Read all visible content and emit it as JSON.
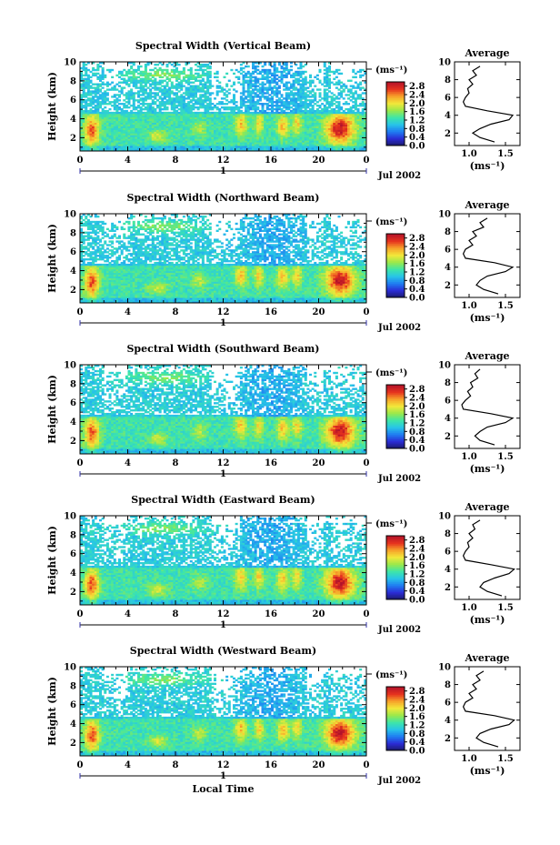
{
  "chart_data": [
    {
      "type": "heatmap",
      "title": "Spectral Width (Vertical Beam)",
      "ylabel": "Height (km)",
      "x_ticks": [
        "0",
        "4",
        "8",
        "12",
        "16",
        "20",
        "0"
      ],
      "y_ticks": [
        "2",
        "4",
        "6",
        "8",
        "10"
      ],
      "xlim": [
        0,
        24
      ],
      "ylim": [
        0.6,
        10
      ],
      "date_label": "Jul 2002",
      "day_label": "1",
      "colorbar": {
        "unit": "(ms⁻¹)",
        "ticks": [
          "0.0",
          "0.4",
          "0.8",
          "1.2",
          "1.6",
          "2.0",
          "2.4",
          "2.8"
        ],
        "range": [
          0,
          3.0
        ]
      },
      "profile": {
        "title": "Average",
        "x_ticks": [
          "1.0",
          "1.5"
        ],
        "xlabel": "(ms⁻¹)",
        "xlim": [
          0.8,
          1.7
        ],
        "ylim": [
          0.6,
          10
        ],
        "y_ticks": [
          "2",
          "4",
          "6",
          "8",
          "10"
        ],
        "heights": [
          1.0,
          1.5,
          2.0,
          2.5,
          3.0,
          3.5,
          4.0,
          4.5,
          5.0,
          5.5,
          6.0,
          6.5,
          7.0,
          7.5,
          8.0,
          8.5,
          9.0,
          9.5
        ],
        "values": [
          1.35,
          1.15,
          1.05,
          1.15,
          1.3,
          1.55,
          1.6,
          1.25,
          0.95,
          0.92,
          0.95,
          1.0,
          0.98,
          1.05,
          1.0,
          1.1,
          1.05,
          1.15
        ]
      }
    },
    {
      "type": "heatmap",
      "title": "Spectral Width (Northward Beam)",
      "ylabel": "Height (km)",
      "x_ticks": [
        "0",
        "4",
        "8",
        "12",
        "16",
        "20",
        "0"
      ],
      "y_ticks": [
        "2",
        "4",
        "6",
        "8",
        "10"
      ],
      "xlim": [
        0,
        24
      ],
      "ylim": [
        0.6,
        10
      ],
      "date_label": "Jul 2002",
      "day_label": "1",
      "colorbar": {
        "unit": "(ms⁻¹)",
        "ticks": [
          "0.0",
          "0.4",
          "0.8",
          "1.2",
          "1.6",
          "2.0",
          "2.4",
          "2.8"
        ],
        "range": [
          0,
          3.0
        ]
      },
      "profile": {
        "title": "Average",
        "x_ticks": [
          "1.0",
          "1.5"
        ],
        "xlabel": "(ms⁻¹)",
        "xlim": [
          0.8,
          1.7
        ],
        "ylim": [
          0.6,
          10
        ],
        "y_ticks": [
          "2",
          "4",
          "6",
          "8",
          "10"
        ],
        "heights": [
          1.0,
          1.5,
          2.0,
          2.5,
          3.0,
          3.5,
          4.0,
          4.5,
          5.0,
          5.5,
          6.0,
          6.5,
          7.0,
          7.5,
          8.0,
          8.5,
          9.0,
          9.5
        ],
        "values": [
          1.4,
          1.2,
          1.1,
          1.15,
          1.25,
          1.5,
          1.6,
          1.35,
          0.95,
          0.92,
          0.95,
          1.05,
          1.0,
          1.1,
          1.05,
          1.2,
          1.15,
          1.25
        ]
      }
    },
    {
      "type": "heatmap",
      "title": "Spectral Width (Southward Beam)",
      "ylabel": "Height (km)",
      "x_ticks": [
        "0",
        "4",
        "8",
        "12",
        "16",
        "20",
        "0"
      ],
      "y_ticks": [
        "2",
        "4",
        "6",
        "8",
        "10"
      ],
      "xlim": [
        0,
        24
      ],
      "ylim": [
        0.6,
        10
      ],
      "date_label": "Jul 2002",
      "day_label": "1",
      "colorbar": {
        "unit": "(ms⁻¹)",
        "ticks": [
          "0.0",
          "0.4",
          "0.8",
          "1.2",
          "1.6",
          "2.0",
          "2.4",
          "2.8"
        ],
        "range": [
          0,
          3.0
        ]
      },
      "profile": {
        "title": "Average",
        "x_ticks": [
          "1.0",
          "1.5"
        ],
        "xlabel": "(ms⁻¹)",
        "xlim": [
          0.8,
          1.7
        ],
        "ylim": [
          0.6,
          10
        ],
        "y_ticks": [
          "2",
          "4",
          "6",
          "8",
          "10"
        ],
        "heights": [
          1.0,
          1.5,
          2.0,
          2.5,
          3.0,
          3.5,
          4.0,
          4.5,
          5.0,
          5.5,
          6.0,
          6.5,
          7.0,
          7.5,
          8.0,
          8.5,
          9.0,
          9.5
        ],
        "values": [
          1.35,
          1.15,
          1.08,
          1.15,
          1.25,
          1.5,
          1.6,
          1.3,
          0.92,
          0.9,
          0.95,
          1.02,
          0.98,
          1.05,
          1.02,
          1.12,
          1.08,
          1.15
        ]
      }
    },
    {
      "type": "heatmap",
      "title": "Spectral Width (Eastward Beam)",
      "ylabel": "Height (km)",
      "x_ticks": [
        "0",
        "4",
        "8",
        "12",
        "16",
        "20",
        "0"
      ],
      "y_ticks": [
        "2",
        "4",
        "6",
        "8",
        "10"
      ],
      "xlim": [
        0,
        24
      ],
      "ylim": [
        0.6,
        10
      ],
      "date_label": "Jul 2002",
      "day_label": "1",
      "colorbar": {
        "unit": "(ms⁻¹)",
        "ticks": [
          "0.0",
          "0.4",
          "0.8",
          "1.2",
          "1.6",
          "2.0",
          "2.4",
          "2.8"
        ],
        "range": [
          0,
          3.0
        ]
      },
      "profile": {
        "title": "Average",
        "x_ticks": [
          "1.0",
          "1.5"
        ],
        "xlabel": "(ms⁻¹)",
        "xlim": [
          0.8,
          1.7
        ],
        "ylim": [
          0.6,
          10
        ],
        "y_ticks": [
          "2",
          "4",
          "6",
          "8",
          "10"
        ],
        "heights": [
          1.0,
          1.5,
          2.0,
          2.5,
          3.0,
          3.5,
          4.0,
          4.5,
          5.0,
          5.5,
          6.0,
          6.5,
          7.0,
          7.5,
          8.0,
          8.5,
          9.0,
          9.5
        ],
        "values": [
          1.45,
          1.25,
          1.15,
          1.2,
          1.35,
          1.55,
          1.62,
          1.3,
          0.95,
          0.92,
          0.95,
          1.0,
          0.98,
          1.05,
          1.0,
          1.08,
          1.05,
          1.15
        ]
      }
    },
    {
      "type": "heatmap",
      "title": "Spectral Width (Westward Beam)",
      "ylabel": "Height (km)",
      "x_ticks": [
        "0",
        "4",
        "8",
        "12",
        "16",
        "20",
        "0"
      ],
      "y_ticks": [
        "2",
        "4",
        "6",
        "8",
        "10"
      ],
      "xlim": [
        0,
        24
      ],
      "ylim": [
        0.6,
        10
      ],
      "date_label": "Jul 2002",
      "day_label": "1",
      "xlabel": "Local Time",
      "colorbar": {
        "unit": "(ms⁻¹)",
        "ticks": [
          "0.0",
          "0.4",
          "0.8",
          "1.2",
          "1.6",
          "2.0",
          "2.4",
          "2.8"
        ],
        "range": [
          0,
          3.0
        ]
      },
      "profile": {
        "title": "Average",
        "x_ticks": [
          "1.0",
          "1.5"
        ],
        "xlabel": "(ms⁻¹)",
        "xlim": [
          0.8,
          1.7
        ],
        "ylim": [
          0.6,
          10
        ],
        "y_ticks": [
          "2",
          "4",
          "6",
          "8",
          "10"
        ],
        "heights": [
          1.0,
          1.5,
          2.0,
          2.5,
          3.0,
          3.5,
          4.0,
          4.5,
          5.0,
          5.5,
          6.0,
          6.5,
          7.0,
          7.5,
          8.0,
          8.5,
          9.0,
          9.5
        ],
        "values": [
          1.4,
          1.2,
          1.1,
          1.15,
          1.3,
          1.55,
          1.62,
          1.35,
          0.95,
          0.92,
          0.95,
          1.05,
          1.0,
          1.1,
          1.05,
          1.15,
          1.1,
          1.2
        ]
      }
    }
  ],
  "colors": {
    "colormap": [
      "#1a1a66",
      "#2b2bd4",
      "#1f7cf2",
      "#27c4e8",
      "#3ee6a8",
      "#9be84a",
      "#f2e83a",
      "#f7a22a",
      "#e6321e",
      "#b3122a"
    ]
  }
}
